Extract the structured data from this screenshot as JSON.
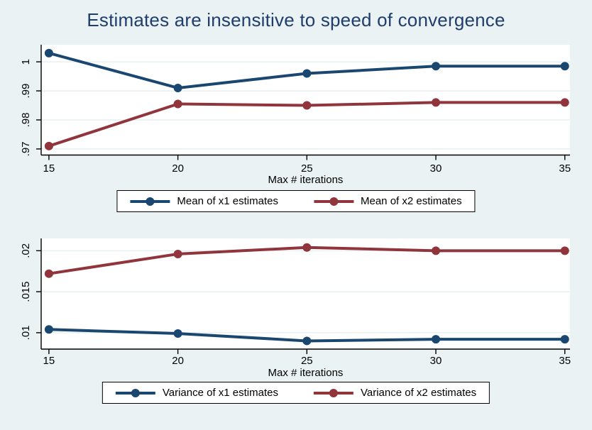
{
  "figure": {
    "title": "Estimates are insensitive to speed of convergence"
  },
  "colors": {
    "page_bg": "#eaf2f3",
    "plot_bg": "#ffffff",
    "grid": "#e7eff1",
    "axis": "#000000",
    "text": "#000000",
    "title": "#1f3d6d",
    "navy": "#1a476f",
    "maroon": "#90353b"
  },
  "chart_data": [
    {
      "type": "line",
      "panel": "mean-estimates",
      "xlabel": "Max # iterations",
      "ylabel": "",
      "x": [
        15,
        20,
        25,
        30,
        35
      ],
      "x_tick_labels": [
        "15",
        "20",
        "25",
        "30",
        "35"
      ],
      "y_ticks": [
        1,
        0.99,
        0.98,
        0.97
      ],
      "y_tick_labels": [
        "1",
        ".99",
        ".98",
        ".97"
      ],
      "x_range": [
        14.7,
        35.2
      ],
      "y_range": [
        0.9679,
        1.0059
      ],
      "grid": true,
      "legend_position": "bottom",
      "series": [
        {
          "name": "Mean of x1 estimates",
          "color": "navy",
          "values": [
            1.003,
            0.991,
            0.996,
            0.9985,
            0.9985
          ]
        },
        {
          "name": "Mean of x2 estimates",
          "color": "maroon",
          "values": [
            0.971,
            0.9855,
            0.985,
            0.986,
            0.986
          ]
        }
      ]
    },
    {
      "type": "line",
      "panel": "variance-estimates",
      "xlabel": "Max # iterations",
      "ylabel": "",
      "x": [
        15,
        20,
        25,
        30,
        35
      ],
      "x_tick_labels": [
        "15",
        "20",
        "25",
        "30",
        "35"
      ],
      "y_ticks": [
        0.02,
        0.015,
        0.01
      ],
      "y_tick_labels": [
        ".02",
        ".015",
        ".01"
      ],
      "x_range": [
        14.7,
        35.2
      ],
      "y_range": [
        0.008,
        0.0215
      ],
      "grid": true,
      "legend_position": "bottom",
      "series": [
        {
          "name": "Variance of x1 estimates",
          "color": "navy",
          "values": [
            0.0104,
            0.0099,
            0.009,
            0.0092,
            0.0092
          ]
        },
        {
          "name": "Variance of x2 estimates",
          "color": "maroon",
          "values": [
            0.0172,
            0.0196,
            0.0204,
            0.02,
            0.02
          ]
        }
      ]
    }
  ]
}
